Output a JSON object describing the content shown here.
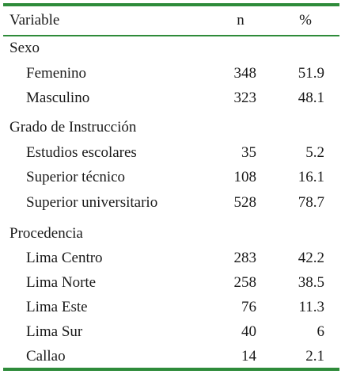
{
  "header": {
    "variable": "Variable",
    "n": "n",
    "pct": "%"
  },
  "sections": [
    {
      "title": "Sexo",
      "rows": [
        {
          "label": "Femenino",
          "n": "348",
          "pct": "51.9"
        },
        {
          "label": "Masculino",
          "n": "323",
          "pct": "48.1"
        }
      ]
    },
    {
      "title": "Grado de Instrucción",
      "rows": [
        {
          "label": "Estudios escolares",
          "n": "35",
          "pct": "5.2"
        },
        {
          "label": "Superior técnico",
          "n": "108",
          "pct": "16.1"
        },
        {
          "label": "Superior universitario",
          "n": "528",
          "pct": "78.7"
        }
      ]
    },
    {
      "title": "Procedencia",
      "rows": [
        {
          "label": "Lima Centro",
          "n": "283",
          "pct": "42.2"
        },
        {
          "label": "Lima Norte",
          "n": "258",
          "pct": "38.5"
        },
        {
          "label": "Lima Este",
          "n": "76",
          "pct": "11.3"
        },
        {
          "label": "Lima Sur",
          "n": "40",
          "pct": "6"
        },
        {
          "label": "Callao",
          "n": "14",
          "pct": "2.1"
        }
      ]
    }
  ],
  "colors": {
    "rule": "#2e8b3a",
    "text": "#1a1a1a"
  }
}
